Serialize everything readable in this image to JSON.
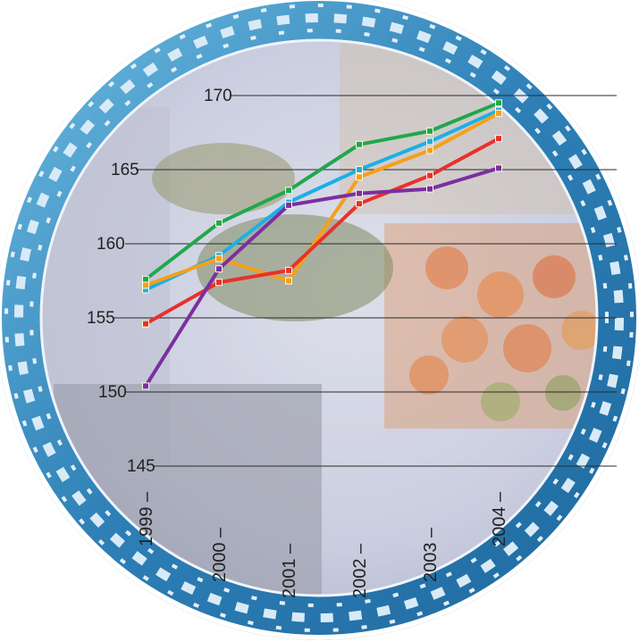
{
  "chart_data": {
    "type": "line",
    "title": "",
    "xlabel": "",
    "ylabel": "",
    "categories": [
      "1999",
      "2000",
      "2001",
      "2002",
      "2003",
      "2004"
    ],
    "y_ticks": [
      "145",
      "150",
      "155",
      "160",
      "165",
      "170"
    ],
    "ylim": [
      145,
      170
    ],
    "grid": true,
    "legend": "none",
    "series": [
      {
        "color": "#1fa84a",
        "values": [
          157.6,
          161.4,
          163.6,
          166.7,
          167.6,
          169.5
        ]
      },
      {
        "color": "#1ab0e6",
        "values": [
          156.9,
          159.2,
          162.8,
          165.0,
          166.9,
          169.0
        ]
      },
      {
        "color": "#f5a01a",
        "values": [
          157.2,
          159.0,
          157.5,
          164.5,
          166.3,
          168.8
        ]
      },
      {
        "color": "#e8312b",
        "values": [
          154.6,
          157.4,
          158.2,
          162.7,
          164.6,
          167.1
        ]
      },
      {
        "color": "#7b2fa0",
        "values": [
          150.4,
          158.3,
          162.6,
          163.4,
          163.7,
          165.1
        ]
      }
    ]
  }
}
